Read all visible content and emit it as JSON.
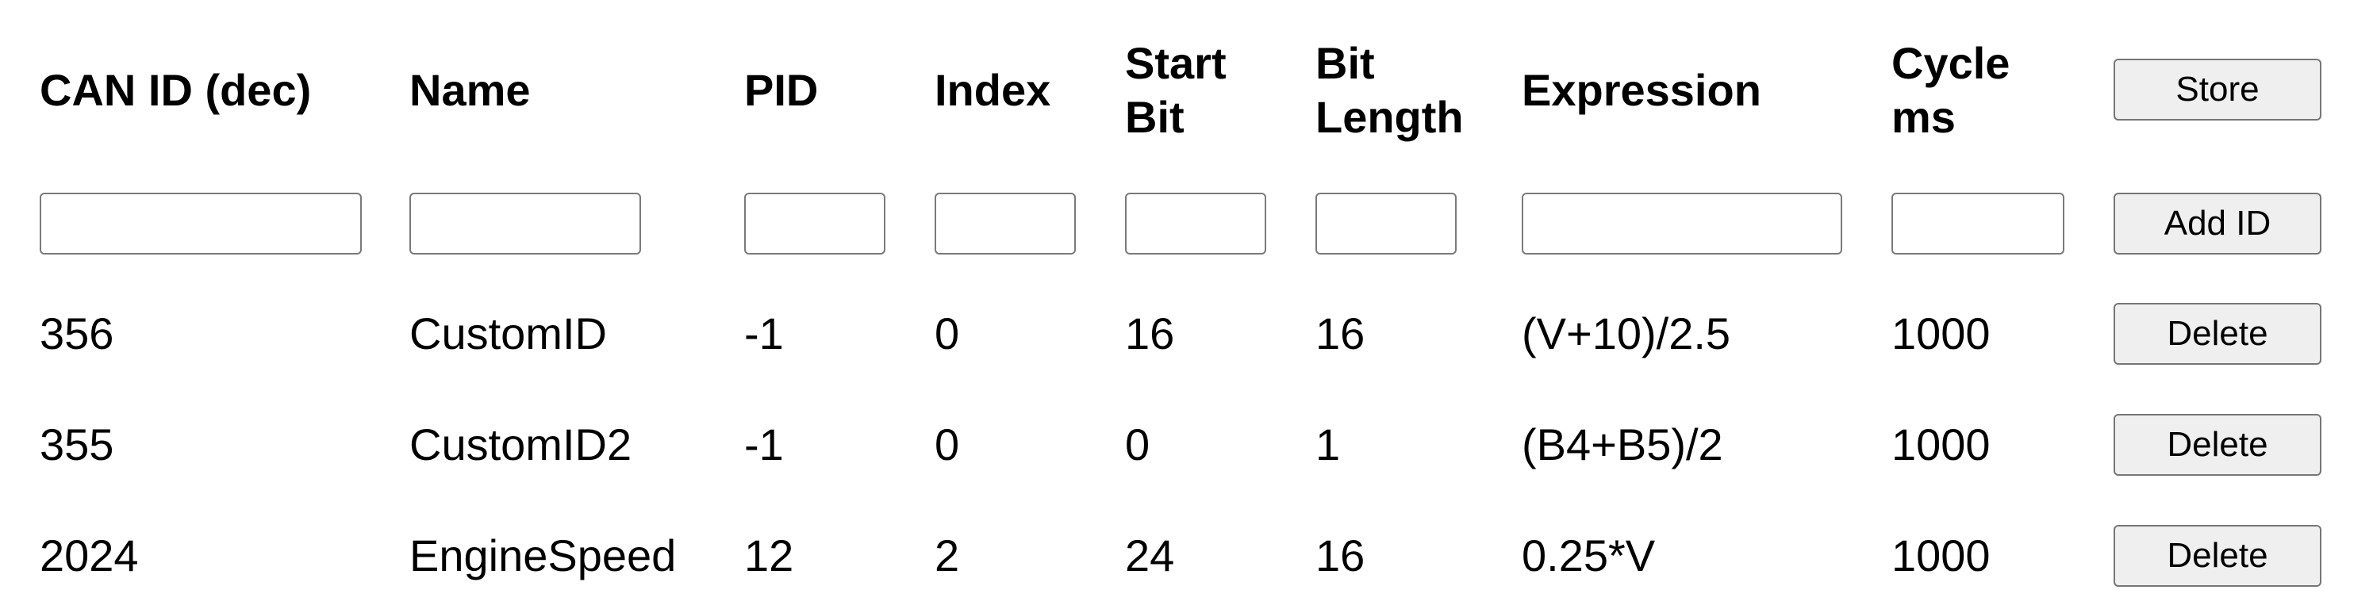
{
  "headers": {
    "can_id": "CAN ID (dec)",
    "name": "Name",
    "pid": "PID",
    "index": "Index",
    "start_bit": "Start\nBit",
    "bit_length": "Bit\nLength",
    "expression": "Expression",
    "cycle_ms": "Cycle\nms"
  },
  "buttons": {
    "store": "Store",
    "add_id": "Add ID",
    "delete": "Delete"
  },
  "inputs": {
    "can_id": "",
    "name": "",
    "pid": "",
    "index": "",
    "start_bit": "",
    "bit_length": "",
    "expression": "",
    "cycle_ms": ""
  },
  "rows": [
    {
      "can_id": "356",
      "name": "CustomID",
      "pid": "-1",
      "index": "0",
      "start_bit": "16",
      "bit_length": "16",
      "expression": "(V+10)/2.5",
      "cycle_ms": "1000"
    },
    {
      "can_id": "355",
      "name": "CustomID2",
      "pid": "-1",
      "index": "0",
      "start_bit": "0",
      "bit_length": "1",
      "expression": "(B4+B5)/2",
      "cycle_ms": "1000"
    },
    {
      "can_id": "2024",
      "name": "EngineSpeed",
      "pid": "12",
      "index": "2",
      "start_bit": "24",
      "bit_length": "16",
      "expression": "0.25*V",
      "cycle_ms": "1000"
    }
  ]
}
